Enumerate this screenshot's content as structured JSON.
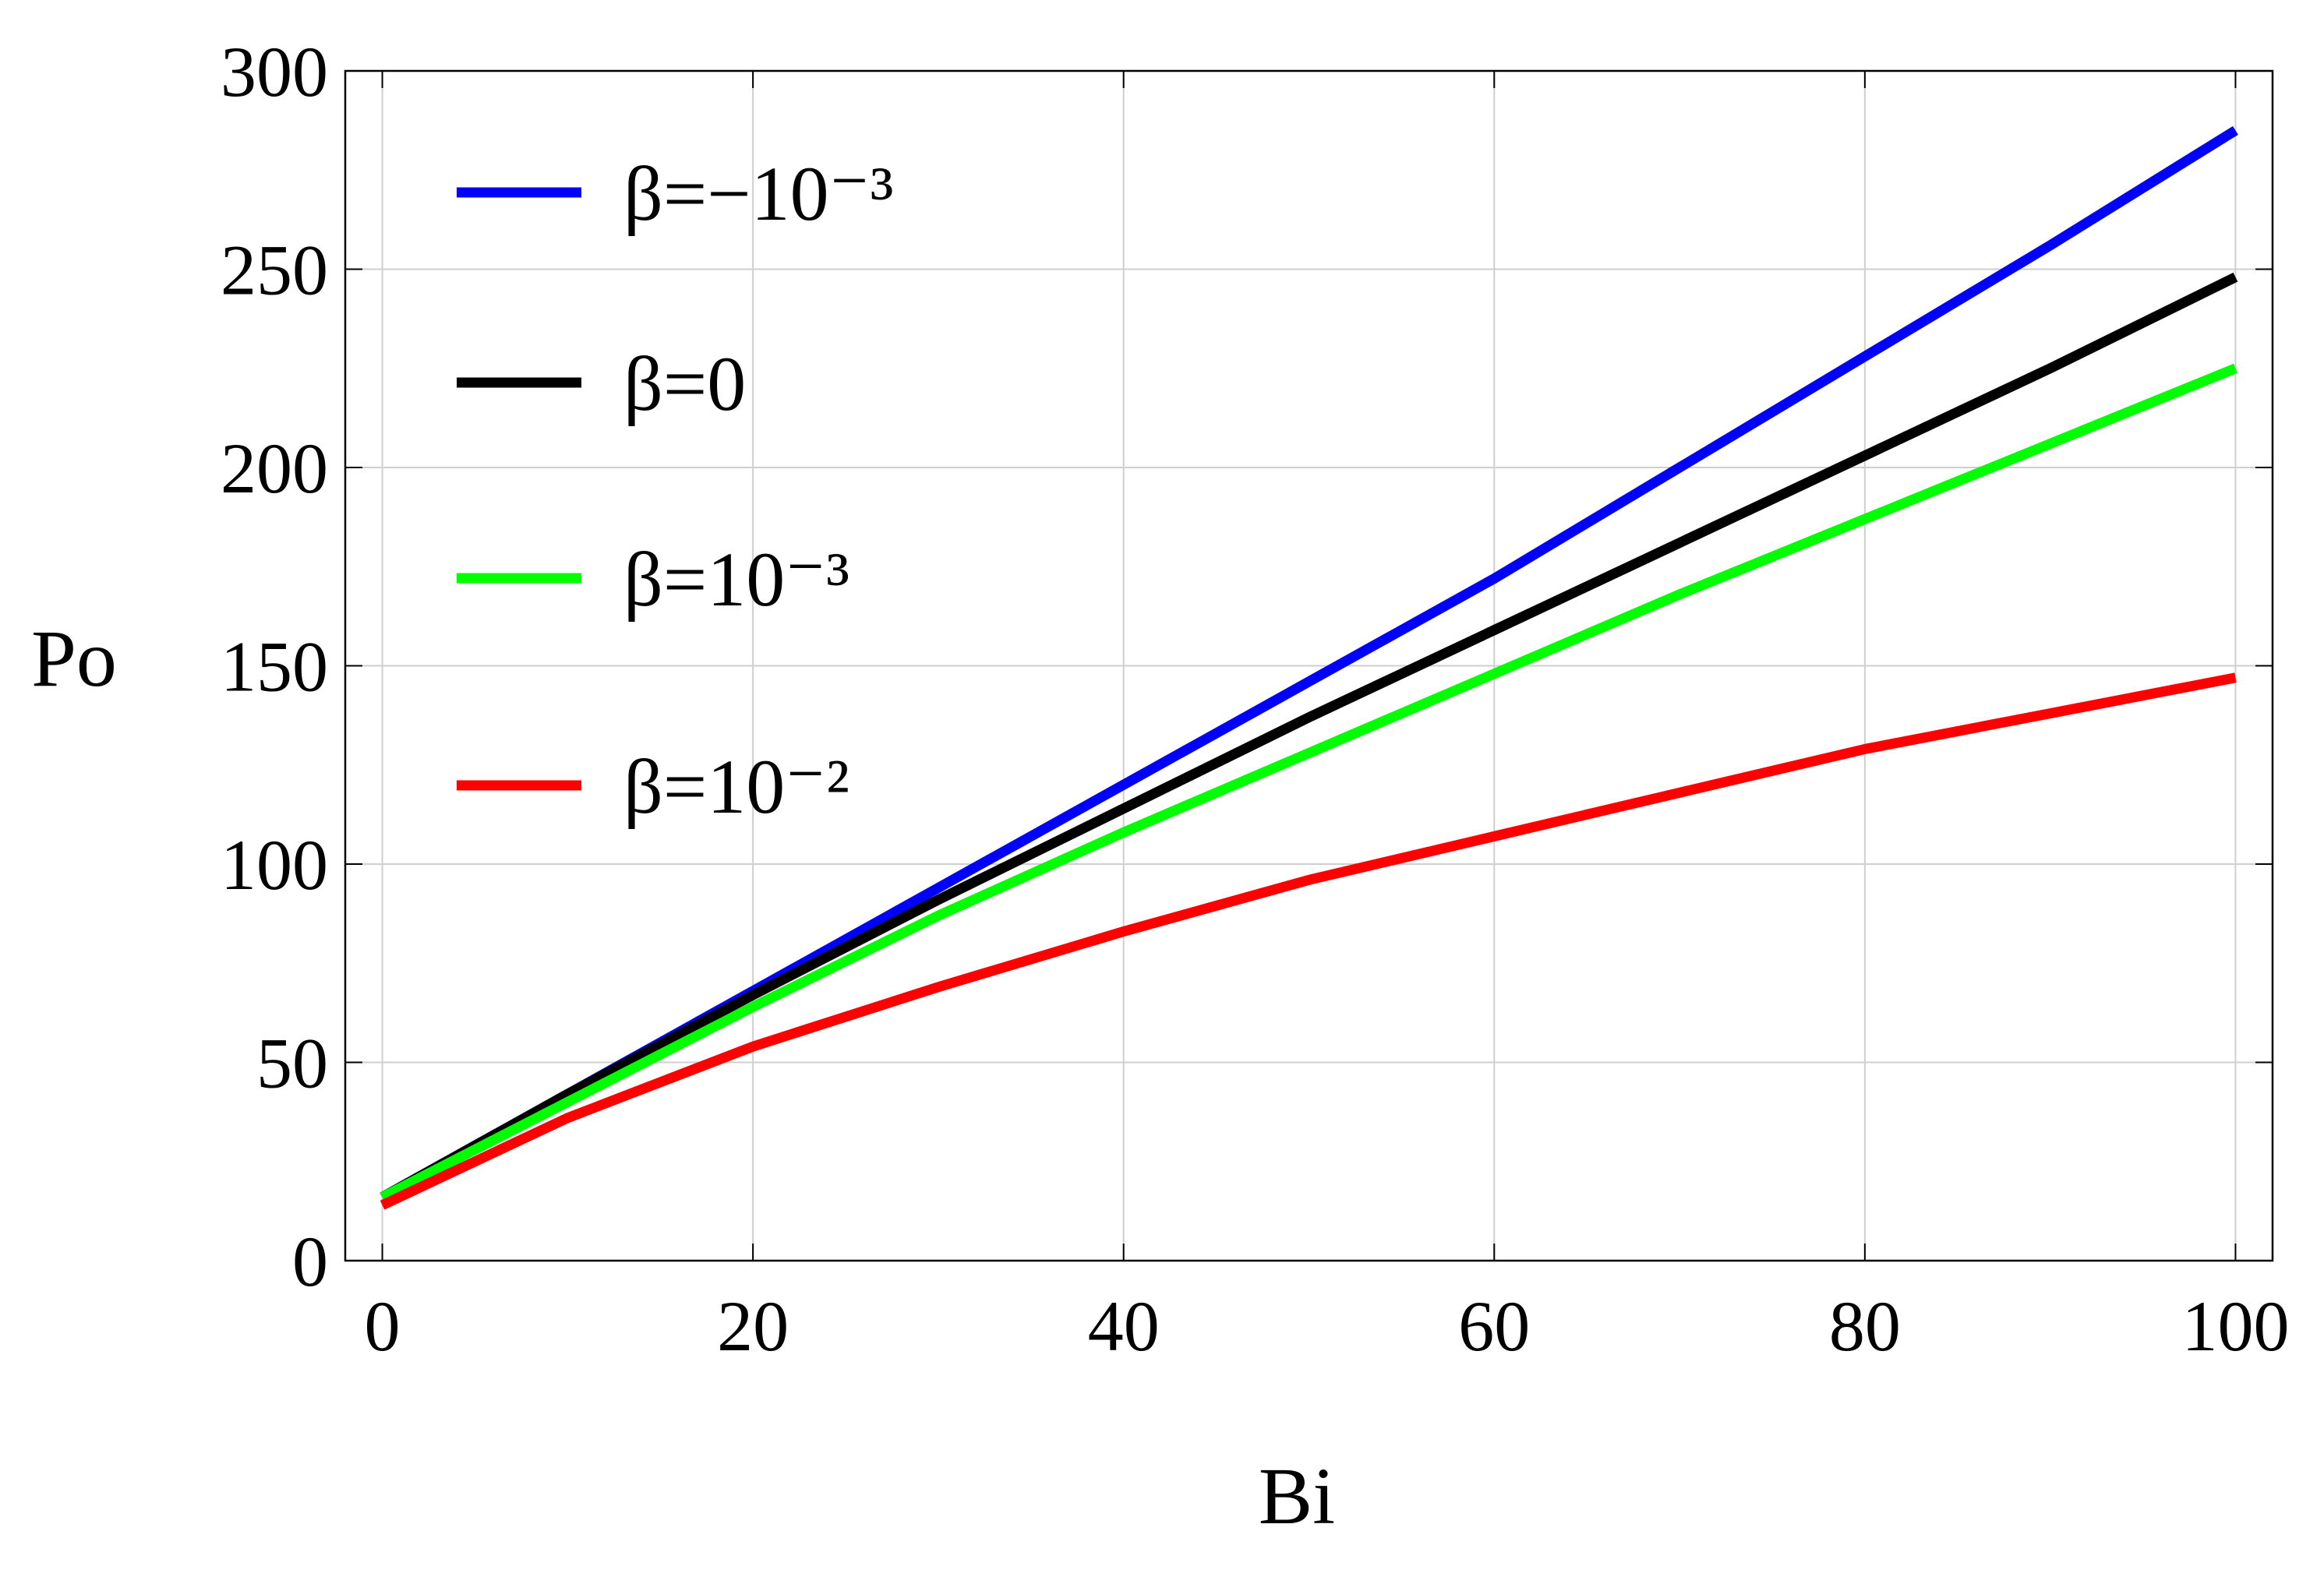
{
  "chart_data": {
    "type": "line",
    "x_label": "Bi",
    "y_label": "Po",
    "x": [
      0,
      10,
      20,
      30,
      40,
      50,
      60,
      70,
      80,
      90,
      100
    ],
    "series": [
      {
        "name": "β=−10⁻³",
        "color": "#0000ff",
        "values": [
          16,
          42,
          68,
          94,
          120,
          146,
          172,
          200,
          228,
          256,
          285
        ]
      },
      {
        "name": "β=0",
        "color": "#000000",
        "values": [
          16,
          42,
          67,
          91,
          114,
          137,
          159,
          181,
          203,
          225,
          248
        ]
      },
      {
        "name": "β=10⁻³",
        "color": "#00ff00",
        "values": [
          16,
          40,
          64,
          87,
          108,
          128,
          148,
          168,
          187,
          206,
          225
        ]
      },
      {
        "name": "β=10⁻²",
        "color": "#ff0000",
        "values": [
          14,
          36,
          54,
          69,
          83,
          96,
          107,
          118,
          129,
          138,
          147
        ]
      }
    ],
    "xlim": [
      -2,
      102
    ],
    "xticks": [
      0,
      20,
      40,
      60,
      80,
      100
    ],
    "ylim": [
      0,
      300
    ],
    "yticks": [
      0,
      50,
      100,
      150,
      200,
      250,
      300
    ],
    "grid": true,
    "legend": "upper left"
  }
}
